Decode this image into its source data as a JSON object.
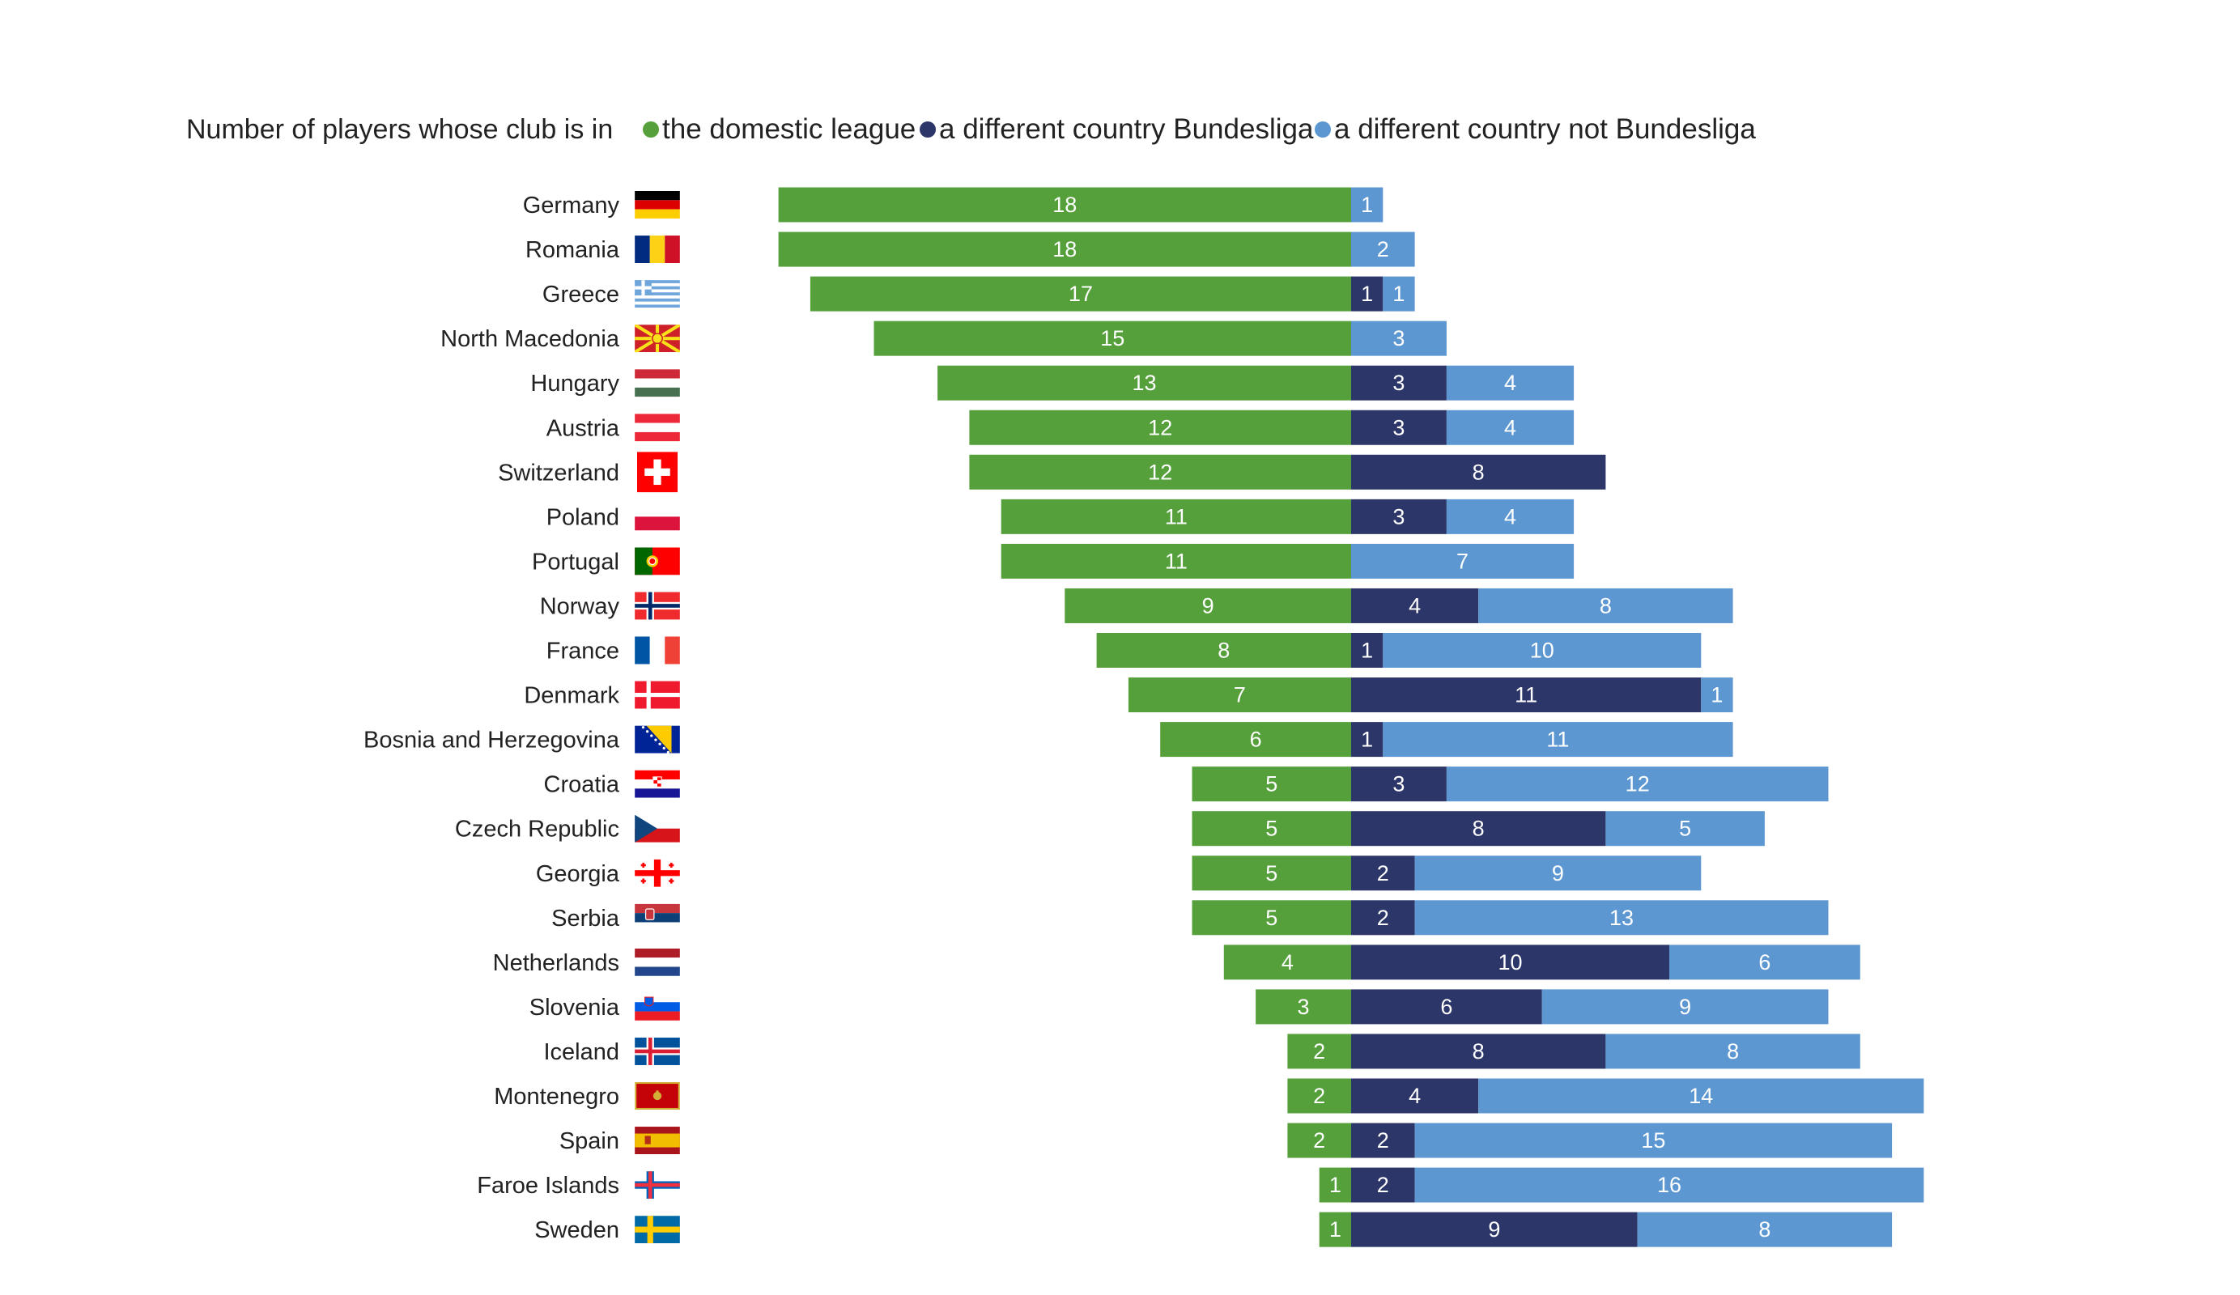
{
  "chart_data": {
    "type": "bar",
    "orientation": "horizontal",
    "stacked": "diverging",
    "title": "Number of players whose club is in",
    "legend_placement": "top",
    "series": [
      {
        "name": "the domestic league",
        "color": "#55a03b",
        "values": [
          18,
          18,
          17,
          15,
          13,
          12,
          12,
          11,
          11,
          9,
          8,
          7,
          6,
          5,
          5,
          5,
          5,
          4,
          3,
          2,
          2,
          2,
          1,
          1
        ]
      },
      {
        "name": "a different country Bundesliga",
        "color": "#2d3668",
        "values": [
          0,
          0,
          1,
          0,
          3,
          3,
          8,
          3,
          0,
          4,
          1,
          11,
          1,
          3,
          8,
          2,
          2,
          10,
          6,
          8,
          4,
          2,
          2,
          9
        ]
      },
      {
        "name": "a different country not Bundesliga",
        "color": "#5d97d1",
        "values": [
          1,
          2,
          1,
          3,
          4,
          4,
          0,
          4,
          7,
          8,
          10,
          1,
          11,
          12,
          5,
          9,
          13,
          6,
          9,
          8,
          14,
          15,
          16,
          8
        ]
      }
    ],
    "categories": [
      "Germany",
      "Romania",
      "Greece",
      "North Macedonia",
      "Hungary",
      "Austria",
      "Switzerland",
      "Poland",
      "Portugal",
      "Norway",
      "France",
      "Denmark",
      "Bosnia and Herzegovina",
      "Croatia",
      "Czech Republic",
      "Georgia",
      "Serbia",
      "Netherlands",
      "Slovenia",
      "Iceland",
      "Montenegro",
      "Spain",
      "Faroe Islands",
      "Sweden"
    ],
    "flags": [
      "germany-flag",
      "romania-flag",
      "greece-flag",
      "north-macedonia-flag",
      "hungary-flag",
      "austria-flag",
      "switzerland-flag",
      "poland-flag",
      "portugal-flag",
      "norway-flag",
      "france-flag",
      "denmark-flag",
      "bosnia-flag",
      "croatia-flag",
      "czech-flag",
      "georgia-flag",
      "serbia-flag",
      "netherlands-flag",
      "slovenia-flag",
      "iceland-flag",
      "montenegro-flag",
      "spain-flag",
      "faroe-flag",
      "sweden-flag"
    ]
  }
}
